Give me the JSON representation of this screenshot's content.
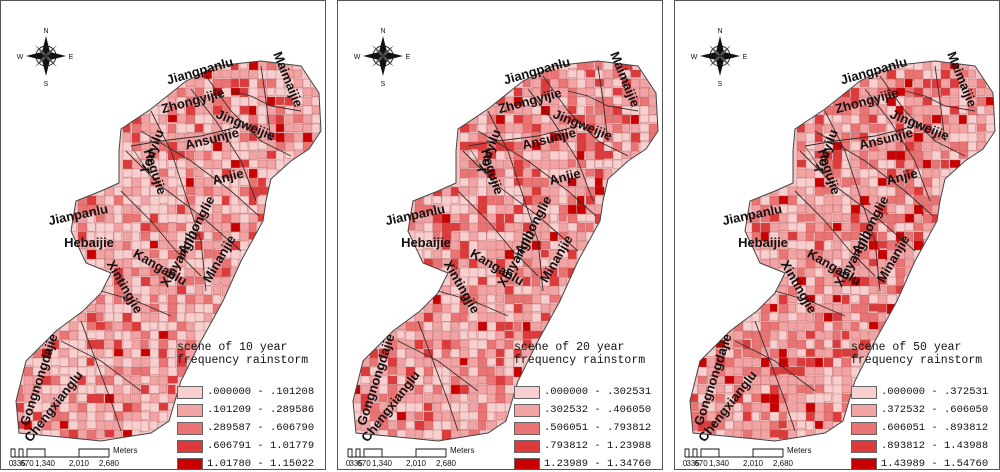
{
  "compass": {
    "n": "N",
    "s": "S",
    "e": "E",
    "w": "W"
  },
  "scalebar": {
    "ticks": [
      "0",
      "335",
      "670",
      "1,340",
      "2,010",
      "2,680"
    ],
    "unit": "Meters"
  },
  "street_labels": [
    {
      "id": "jiangpanlu",
      "text": "Jiangpanlu"
    },
    {
      "id": "maimaijie",
      "text": "Maimaijie"
    },
    {
      "id": "zhongyijie",
      "text": "Zhongyijie"
    },
    {
      "id": "youyilu",
      "text": "Youyilu"
    },
    {
      "id": "jingweijie",
      "text": "Jingweijie"
    },
    {
      "id": "ansunjie",
      "text": "Ansunjie"
    },
    {
      "id": "anjie",
      "text": "Anjie"
    },
    {
      "id": "hegujie",
      "text": "Hegujie"
    },
    {
      "id": "anhonglie",
      "text": "Anhonglie"
    },
    {
      "id": "jianpanlu",
      "text": "Jianpanlu"
    },
    {
      "id": "hebaijie",
      "text": "Hebaijie"
    },
    {
      "id": "xinyanglu",
      "text": "Xinyanglu"
    },
    {
      "id": "minanjie",
      "text": "Minanjie"
    },
    {
      "id": "kanganlu",
      "text": "Kanganlu"
    },
    {
      "id": "xintingjie",
      "text": "Xintingjie"
    },
    {
      "id": "gongnongdajie",
      "text": "Gongnongdajie"
    },
    {
      "id": "chengxianglu",
      "text": "Chengxianglu"
    }
  ],
  "legend_colors": [
    "#f7cfcf",
    "#f2a3a3",
    "#ea7474",
    "#dd3b3b",
    "#c80000"
  ],
  "panels": [
    {
      "legend_title": "scene of 10 year\nfrequency rainstorm",
      "classes": [
        ".000000 - .101208",
        ".101209 - .289586",
        ".289587 - .606790",
        ".606791 - 1.01779",
        "1.01780 - 1.15022"
      ]
    },
    {
      "legend_title": "scene of 20 year\nfrequency rainstorm",
      "classes": [
        ".000000 - .302531",
        ".302532 - .406050",
        ".506051 - .793812",
        ".793812 - 1.23988",
        "1.23989 - 1.34760"
      ]
    },
    {
      "legend_title": "scene of 50 year\nfrequency rainstorm",
      "classes": [
        ".000000 - .372531",
        ".372532 - .606050",
        ".606051 - .893812",
        ".893812 - 1.43988",
        "1.43989 - 1.54760"
      ]
    }
  ]
}
